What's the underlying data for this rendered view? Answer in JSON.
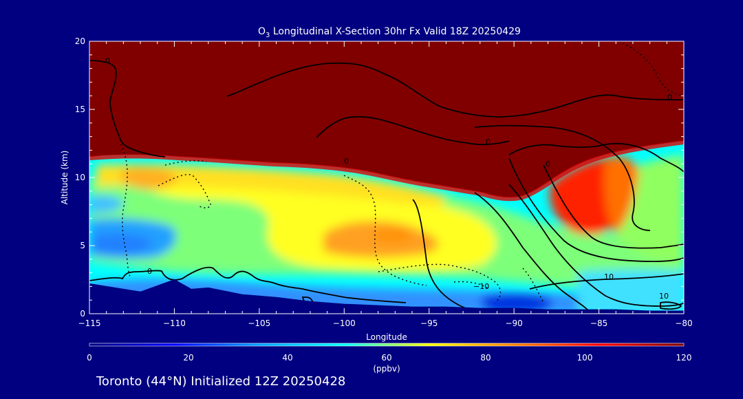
{
  "chart_data": {
    "type": "heatmap",
    "title_prefix": "O",
    "title_subscript": "3",
    "title_rest": " Longitudinal X-Section 30hr  Fx Valid 18Z 20250429",
    "xlabel": "Longitude",
    "ylabel": "Altitude (km)",
    "xlim": [
      -115,
      -80
    ],
    "ylim": [
      0,
      20
    ],
    "xticks": [
      -115,
      -110,
      -105,
      -100,
      -95,
      -90,
      -85,
      -80
    ],
    "xtick_labels": [
      "−115",
      "−110",
      "−105",
      "−100",
      "−95",
      "−90",
      "−85",
      "−80"
    ],
    "yticks": [
      0,
      5,
      10,
      15,
      20
    ],
    "colorbar": {
      "min": 0,
      "max": 120,
      "ticks": [
        0,
        20,
        40,
        60,
        80,
        100,
        120
      ],
      "units_label": "(ppbv)",
      "colors": [
        "#000080",
        "#0000ff",
        "#00a0ff",
        "#00ffff",
        "#ffff00",
        "#ff8000",
        "#ff0000",
        "#800000"
      ]
    },
    "contour_labels": [
      "0",
      "0",
      "0",
      "0",
      "0",
      "0",
      "−10",
      "10",
      "10"
    ],
    "terrain_profile": {
      "x": [
        -115,
        -114,
        -112,
        -110,
        -109,
        -108,
        -106,
        -104,
        -102,
        -100,
        -98,
        -96,
        -94,
        -92,
        -90,
        -88,
        -86,
        -84,
        -82,
        -80
      ],
      "y": [
        2.2,
        2.0,
        1.6,
        2.5,
        1.8,
        1.9,
        1.4,
        1.2,
        0.9,
        0.7,
        0.6,
        0.5,
        0.5,
        0.4,
        0.4,
        0.3,
        0.3,
        0.3,
        0.2,
        0.2
      ]
    },
    "stratosphere_base": {
      "x": [
        -115,
        -110,
        -105,
        -100,
        -95,
        -92,
        -90,
        -88,
        -86,
        -84,
        -82,
        -80
      ],
      "y": [
        11.6,
        11.5,
        11.2,
        10.5,
        9.7,
        9.0,
        8.4,
        8.5,
        10.0,
        11.5,
        12.0,
        12.5
      ]
    }
  },
  "footer": {
    "caption": "Toronto (44°N) Initialized 12Z 20250428"
  }
}
